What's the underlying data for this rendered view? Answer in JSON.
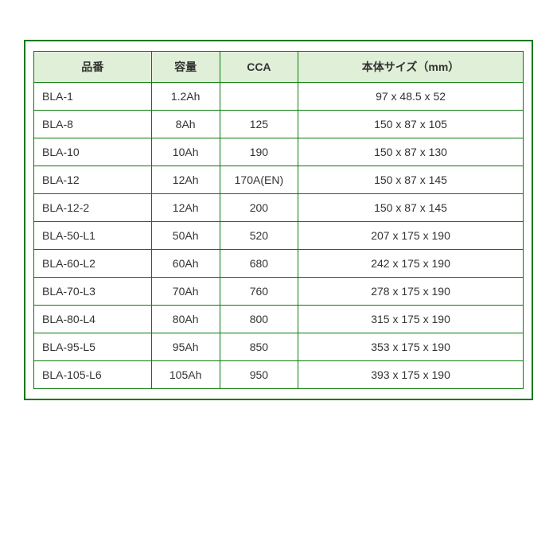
{
  "table": {
    "border_color": "#0a7a0a",
    "header_bg": "#e0f0d8",
    "cell_bg": "#ffffff",
    "text_color": "#333333",
    "font_size_pt": 10.5,
    "columns": [
      {
        "key": "part",
        "label": "品番",
        "width_pct": 24,
        "align": "left"
      },
      {
        "key": "capacity",
        "label": "容量",
        "width_pct": 14,
        "align": "center"
      },
      {
        "key": "cca",
        "label": "CCA",
        "width_pct": 16,
        "align": "center"
      },
      {
        "key": "size",
        "label": "本体サイズ（mm）",
        "width_pct": 46,
        "align": "center"
      }
    ],
    "rows": [
      {
        "part": "BLA-1",
        "capacity": "1.2Ah",
        "cca": "",
        "size": "97 x 48.5 x 52"
      },
      {
        "part": "BLA-8",
        "capacity": "8Ah",
        "cca": "125",
        "size": "150 x 87 x 105"
      },
      {
        "part": "BLA-10",
        "capacity": "10Ah",
        "cca": "190",
        "size": "150 x 87 x 130"
      },
      {
        "part": "BLA-12",
        "capacity": "12Ah",
        "cca": "170A(EN)",
        "size": "150 x 87 x 145"
      },
      {
        "part": "BLA-12-2",
        "capacity": "12Ah",
        "cca": "200",
        "size": "150 x 87 x 145"
      },
      {
        "part": "BLA-50-L1",
        "capacity": "50Ah",
        "cca": "520",
        "size": "207 x 175 x 190"
      },
      {
        "part": "BLA-60-L2",
        "capacity": "60Ah",
        "cca": "680",
        "size": "242 x 175 x 190"
      },
      {
        "part": "BLA-70-L3",
        "capacity": "70Ah",
        "cca": "760",
        "size": "278 x 175 x 190"
      },
      {
        "part": "BLA-80-L4",
        "capacity": "80Ah",
        "cca": "800",
        "size": "315 x 175 x 190"
      },
      {
        "part": "BLA-95-L5",
        "capacity": "95Ah",
        "cca": "850",
        "size": "353 x 175 x 190"
      },
      {
        "part": "BLA-105-L6",
        "capacity": "105Ah",
        "cca": "950",
        "size": "393 x 175 x 190"
      }
    ]
  }
}
